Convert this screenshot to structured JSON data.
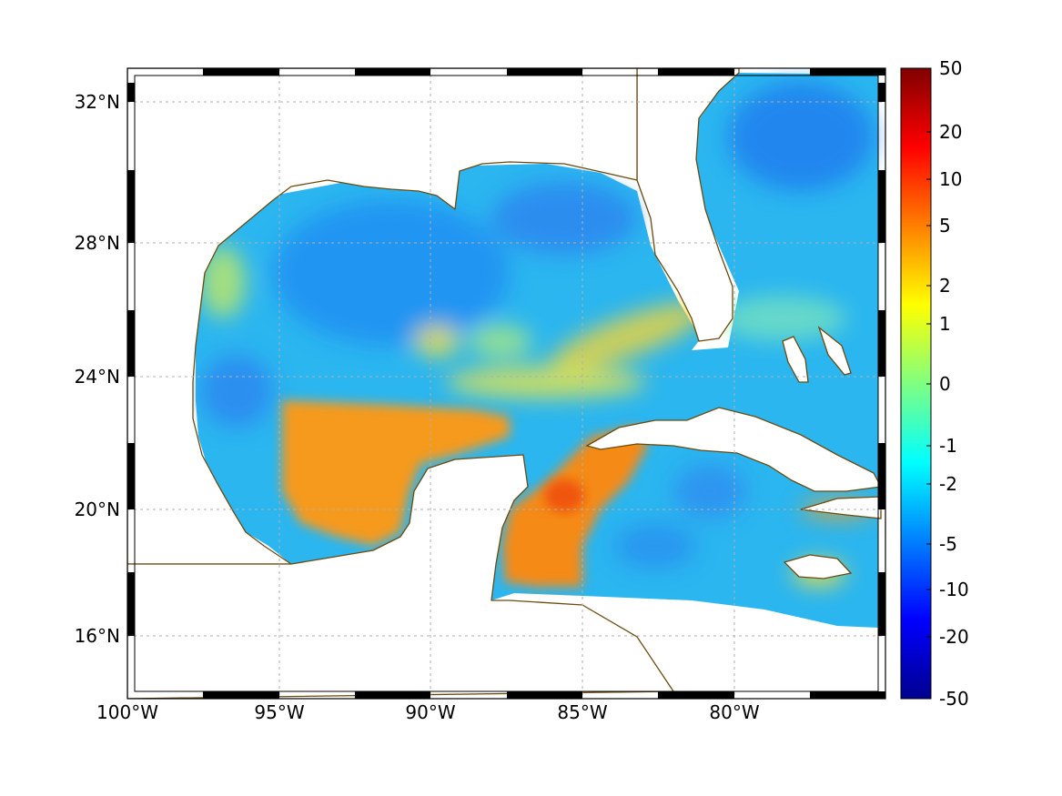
{
  "map": {
    "lon_labels": [
      "100°W",
      "95°W",
      "90°W",
      "85°W",
      "80°W"
    ],
    "lat_labels": [
      "32°N",
      "28°N",
      "24°N",
      "20°N",
      "16°N"
    ],
    "lon_range": [
      -100,
      -75
    ],
    "lat_range": [
      14.3,
      32.8
    ],
    "grid": true,
    "coastline_color": "#6b4a0f",
    "land_color": "#ffffff"
  },
  "colorbar": {
    "ticks": [
      "50",
      "20",
      "10",
      "5",
      "2",
      "1",
      "0",
      "-1",
      "-2",
      "-5",
      "-10",
      "-20",
      "-50"
    ],
    "colormap": "jet",
    "position": "right"
  }
}
